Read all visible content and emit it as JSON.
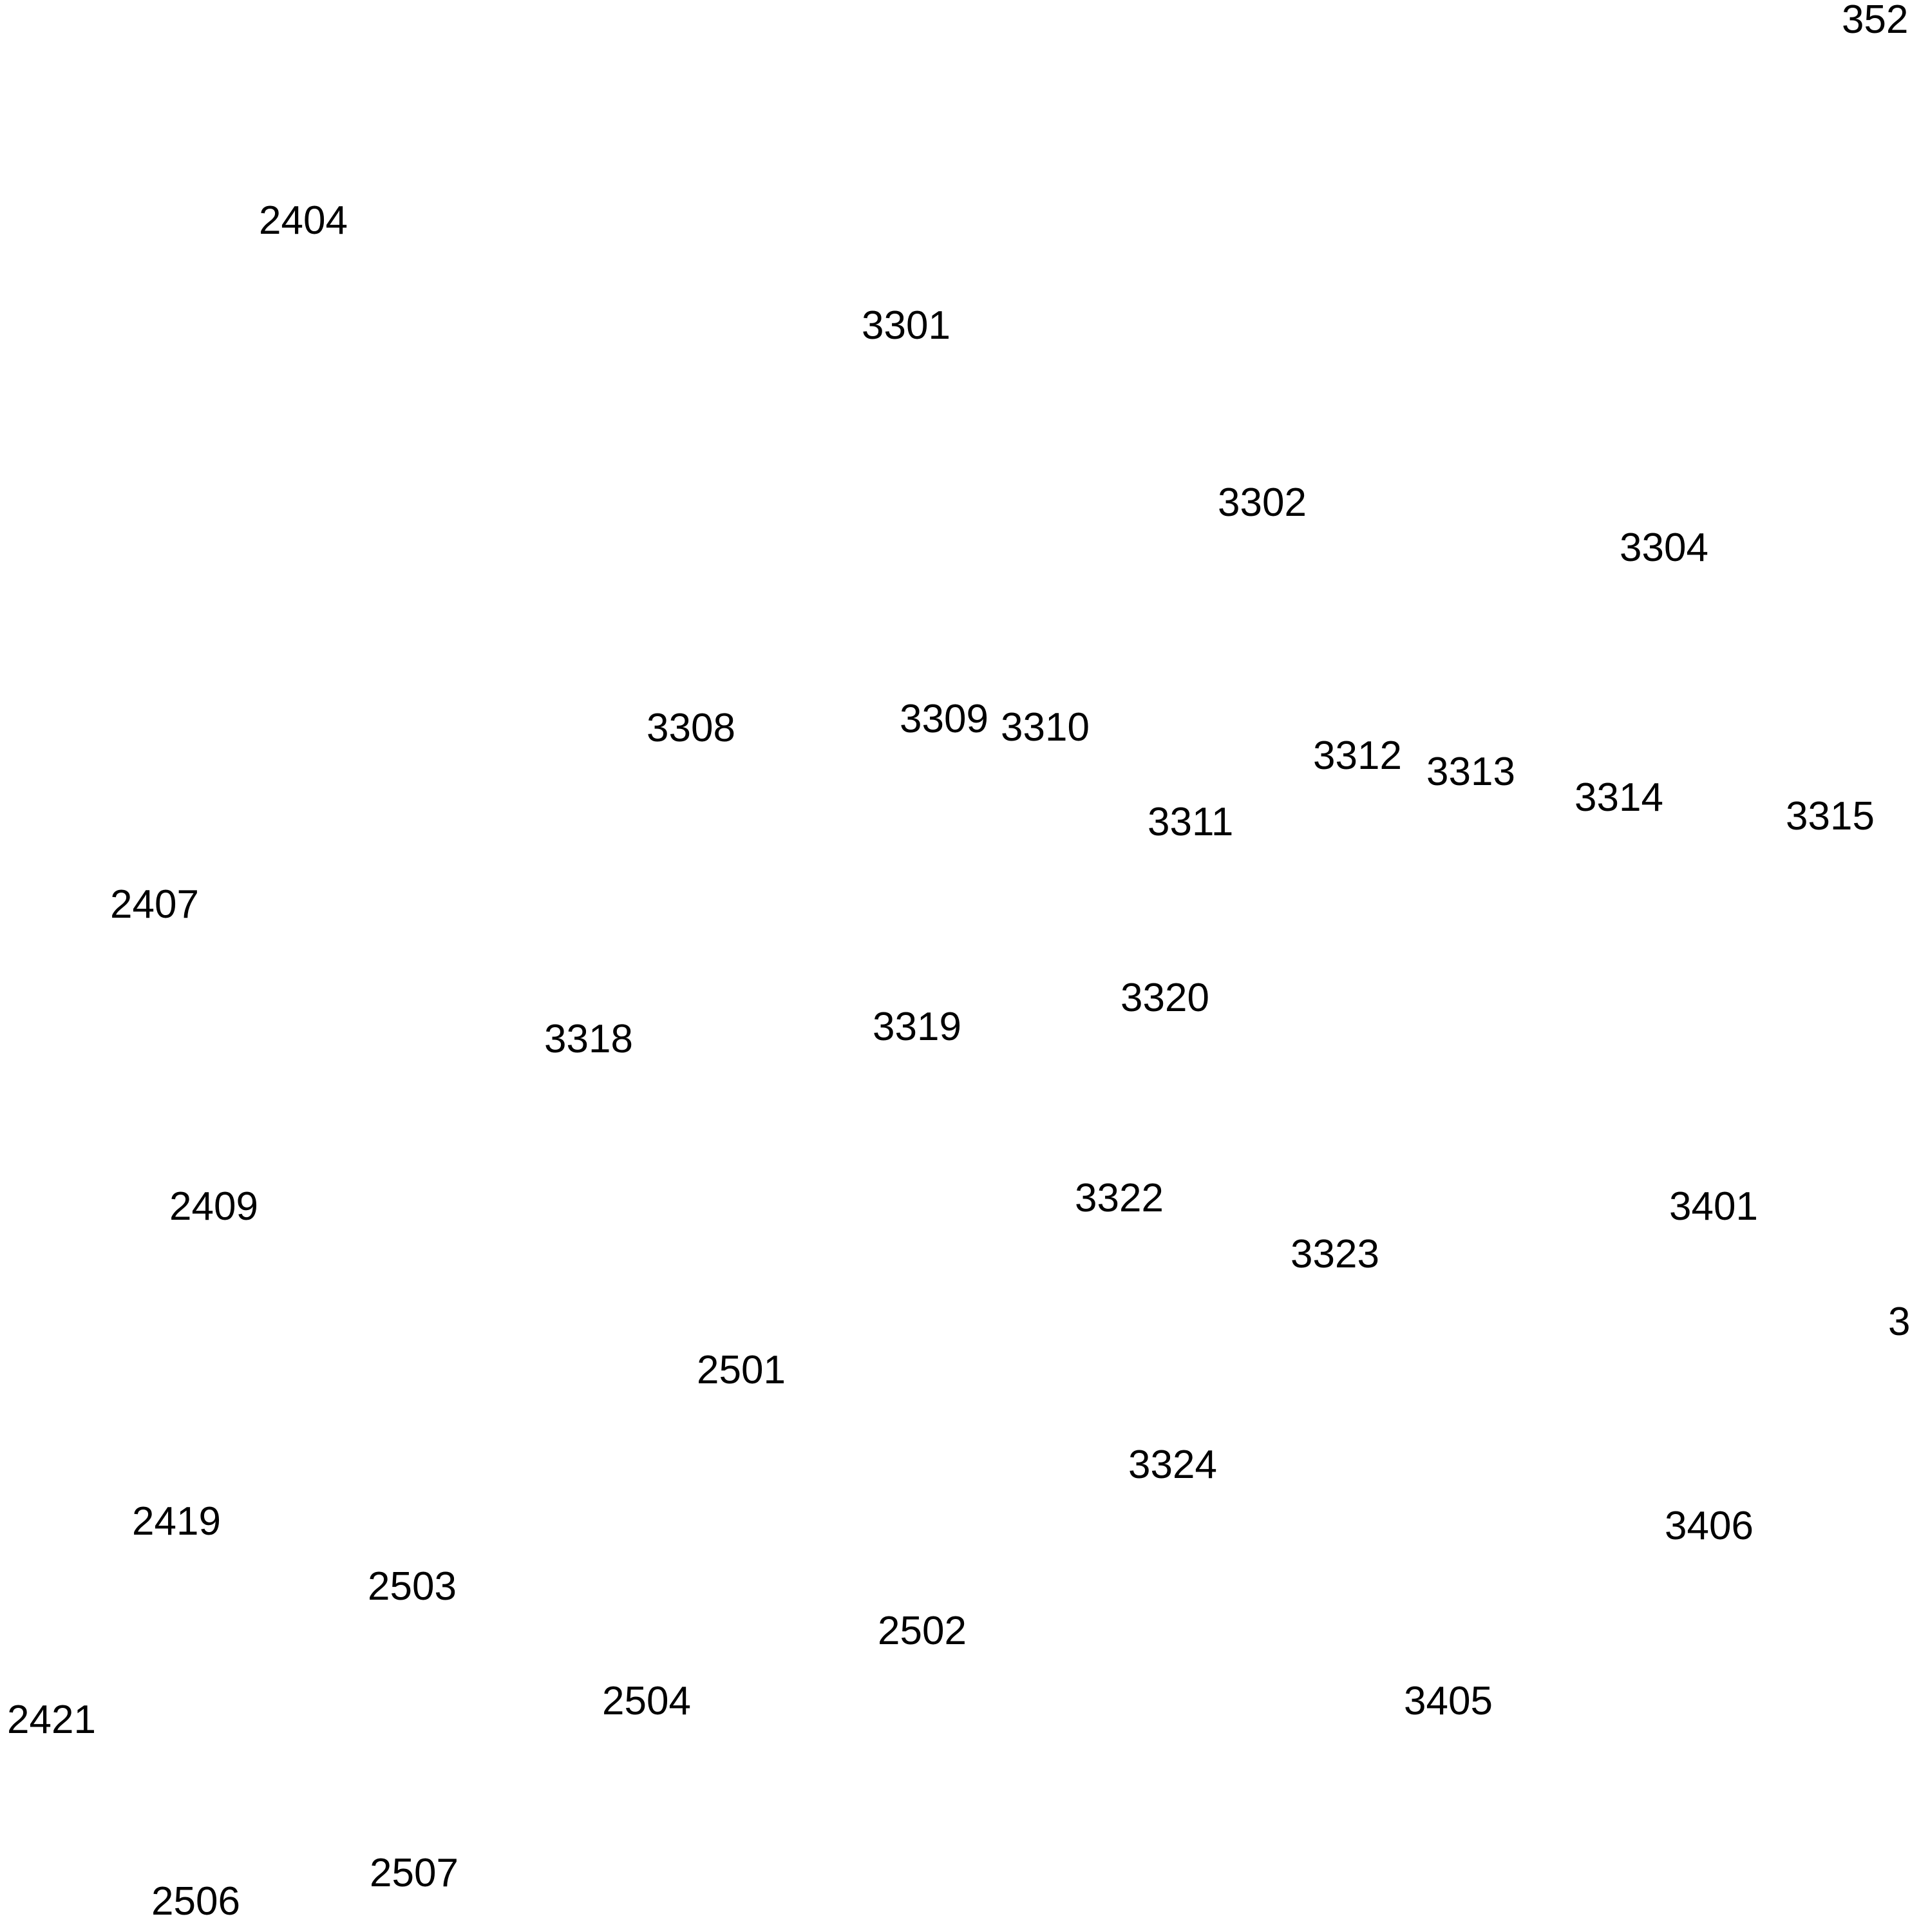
{
  "labels": [
    "2404",
    "3301",
    "3302",
    "3304",
    "3308",
    "3309",
    "3310",
    "3312",
    "3313",
    "3314",
    "3315",
    "3311",
    "2407",
    "3320",
    "3318",
    "3319",
    "2409",
    "3322",
    "3401",
    "3323",
    "2501",
    "3324",
    "2419",
    "3406",
    "2503",
    "2502",
    "2504",
    "2421",
    "3405",
    "2507",
    "2506",
    "352",
    "3"
  ]
}
